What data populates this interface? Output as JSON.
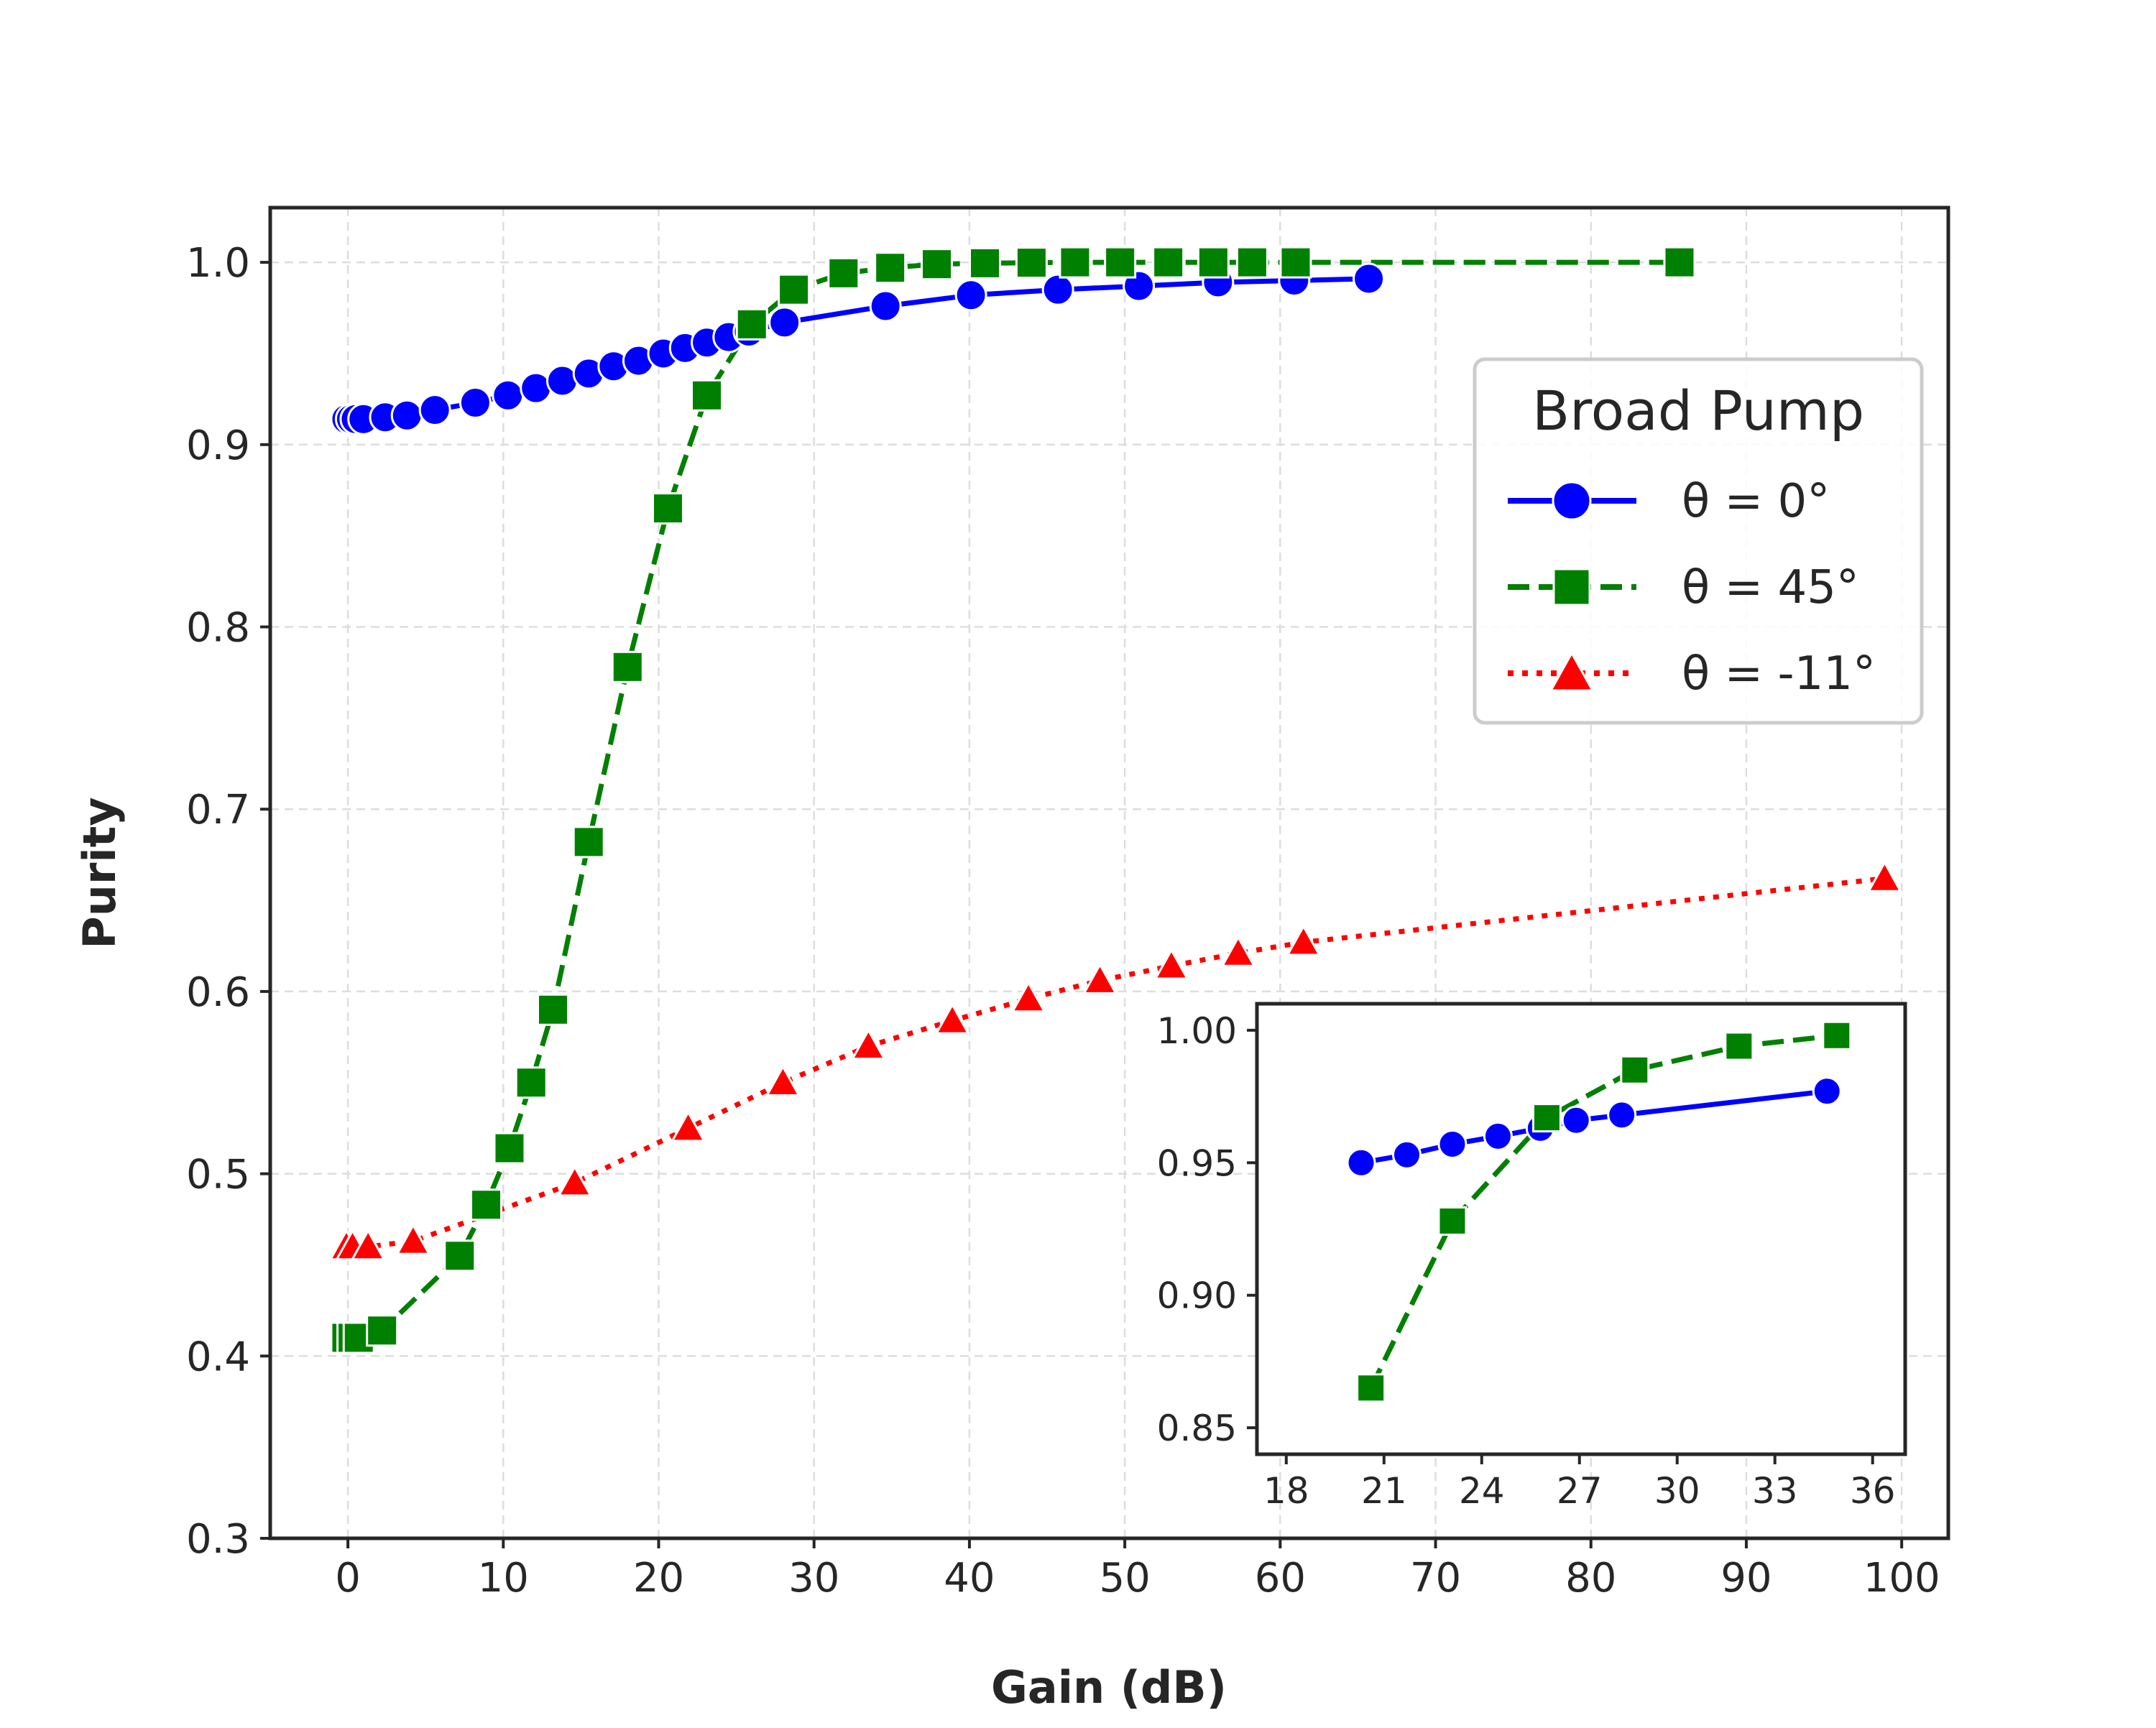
{
  "chart_data": [
    {
      "type": "line",
      "title": "",
      "xlabel": "Gain (dB)",
      "ylabel": "Purity",
      "xlim": [
        -5,
        103
      ],
      "ylim": [
        0.3,
        1.03
      ],
      "xticks": [
        0,
        10,
        20,
        30,
        40,
        50,
        60,
        70,
        80,
        90,
        100
      ],
      "yticks": [
        0.3,
        0.4,
        0.5,
        0.6,
        0.7,
        0.8,
        0.9,
        1.0
      ],
      "xtick_labels": [
        "0",
        "10",
        "20",
        "30",
        "40",
        "50",
        "60",
        "70",
        "80",
        "90",
        "100"
      ],
      "ytick_labels": [
        "0.3",
        "0.4",
        "0.5",
        "0.6",
        "0.7",
        "0.8",
        "0.9",
        "1.0"
      ],
      "grid": true,
      "legend": {
        "title": "Broad Pump",
        "position": "upper-right"
      },
      "series": [
        {
          "name": "θ = 0°",
          "color": "#0000ff",
          "marker": "circle",
          "line_style": "solid",
          "x": [
            -0.1,
            0.2,
            0.5,
            1.0,
            2.4,
            3.8,
            5.6,
            8.2,
            10.3,
            12.1,
            13.8,
            15.5,
            17.1,
            18.7,
            20.3,
            21.7,
            23.1,
            24.5,
            25.8,
            28.1,
            34.6,
            40.1,
            45.7,
            50.9,
            56.0,
            60.9,
            65.7
          ],
          "y": [
            0.914,
            0.914,
            0.914,
            0.914,
            0.915,
            0.916,
            0.919,
            0.923,
            0.927,
            0.931,
            0.935,
            0.939,
            0.943,
            0.946,
            0.95,
            0.953,
            0.956,
            0.959,
            0.962,
            0.967,
            0.976,
            0.982,
            0.985,
            0.987,
            0.989,
            0.99,
            0.991
          ]
        },
        {
          "name": "θ = 45°",
          "color": "#008000",
          "marker": "square",
          "line_style": "dashed",
          "x": [
            -0.1,
            0.3,
            0.7,
            2.2,
            7.2,
            8.9,
            10.4,
            11.8,
            13.2,
            15.5,
            18.0,
            20.6,
            23.1,
            26.0,
            28.7,
            31.9,
            34.9,
            37.9,
            41.0,
            44.0,
            46.8,
            49.7,
            52.8,
            55.7,
            58.2,
            61.0,
            85.7
          ],
          "y": [
            0.41,
            0.41,
            0.41,
            0.414,
            0.455,
            0.483,
            0.514,
            0.55,
            0.59,
            0.682,
            0.778,
            0.865,
            0.927,
            0.966,
            0.985,
            0.994,
            0.997,
            0.999,
            0.9995,
            0.9998,
            1.0,
            1.0,
            1.0,
            1.0,
            1.0,
            1.0,
            1.0
          ]
        },
        {
          "name": "θ = -11°",
          "color": "#ff0000",
          "marker": "triangle",
          "line_style": "dotted",
          "x": [
            -0.1,
            0.3,
            1.3,
            4.2,
            14.6,
            21.9,
            28.0,
            33.5,
            38.9,
            43.8,
            48.4,
            53.0,
            57.3,
            61.5,
            98.9
          ],
          "y": [
            0.46,
            0.46,
            0.46,
            0.463,
            0.495,
            0.525,
            0.55,
            0.57,
            0.584,
            0.596,
            0.606,
            0.614,
            0.621,
            0.627,
            0.662
          ]
        }
      ]
    },
    {
      "type": "line",
      "title": "",
      "xlabel": "",
      "ylabel": "",
      "xlim": [
        17.1,
        37.0
      ],
      "ylim": [
        0.84,
        1.01
      ],
      "xticks": [
        18,
        21,
        24,
        27,
        30,
        33,
        36
      ],
      "yticks": [
        0.85,
        0.9,
        0.95,
        1.0
      ],
      "xtick_labels": [
        "18",
        "21",
        "24",
        "27",
        "30",
        "33",
        "36"
      ],
      "ytick_labels": [
        "0.85",
        "0.90",
        "0.95",
        "1.00"
      ],
      "grid": false,
      "series": [
        {
          "color": "#0000ff",
          "marker": "circle",
          "line_style": "solid",
          "x": [
            20.3,
            21.7,
            23.1,
            24.5,
            25.8,
            26.9,
            28.3,
            34.6
          ],
          "y": [
            0.95,
            0.953,
            0.957,
            0.96,
            0.963,
            0.966,
            0.968,
            0.977
          ]
        },
        {
          "color": "#008000",
          "marker": "square",
          "line_style": "dashed",
          "x": [
            20.6,
            23.1,
            26.0,
            28.7,
            31.9,
            34.9
          ],
          "y": [
            0.865,
            0.928,
            0.967,
            0.985,
            0.994,
            0.998
          ]
        }
      ]
    }
  ]
}
